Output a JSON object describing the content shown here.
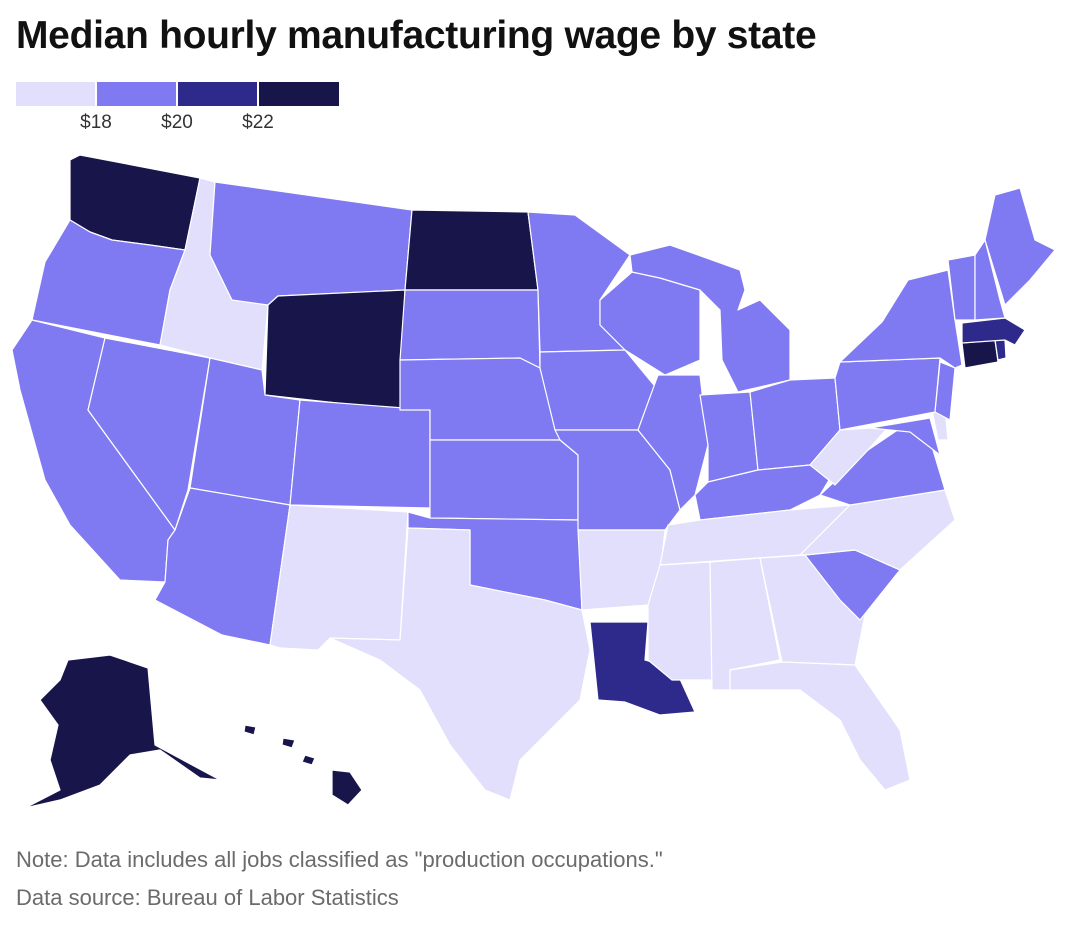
{
  "title": "Median hourly manufacturing wage by state",
  "legend": {
    "colors": [
      "#e1dffc",
      "#7f79f2",
      "#2e2a8c",
      "#17154a"
    ],
    "ticks": [
      "$18",
      "$20",
      "$22"
    ]
  },
  "notes": {
    "note": "Note: Data includes all jobs classified as \"production occupations.\"",
    "source": "Data source: Bureau of Labor Statistics"
  },
  "map_data": {
    "type": "choropleth",
    "region": "United States",
    "bins": [
      "< $18",
      "$18–$20",
      "$20–$22",
      "> $22"
    ],
    "states": {
      "WA": 3,
      "OR": 1,
      "CA": 1,
      "NV": 1,
      "ID": 0,
      "MT": 1,
      "WY": 3,
      "UT": 1,
      "AZ": 1,
      "CO": 1,
      "NM": 0,
      "ND": 3,
      "SD": 1,
      "NE": 1,
      "KS": 1,
      "OK": 1,
      "TX": 0,
      "MN": 1,
      "IA": 1,
      "MO": 1,
      "AR": 0,
      "LA": 2,
      "WI": 1,
      "IL": 1,
      "MI": 1,
      "IN": 1,
      "OH": 1,
      "KY": 1,
      "TN": 0,
      "MS": 0,
      "AL": 0,
      "GA": 0,
      "FL": 0,
      "SC": 1,
      "NC": 0,
      "VA": 1,
      "WV": 0,
      "MD": 1,
      "DE": 0,
      "PA": 1,
      "NJ": 1,
      "NY": 1,
      "CT": 3,
      "RI": 2,
      "MA": 2,
      "VT": 1,
      "NH": 1,
      "ME": 1,
      "AK": 3,
      "HI": 3
    }
  }
}
